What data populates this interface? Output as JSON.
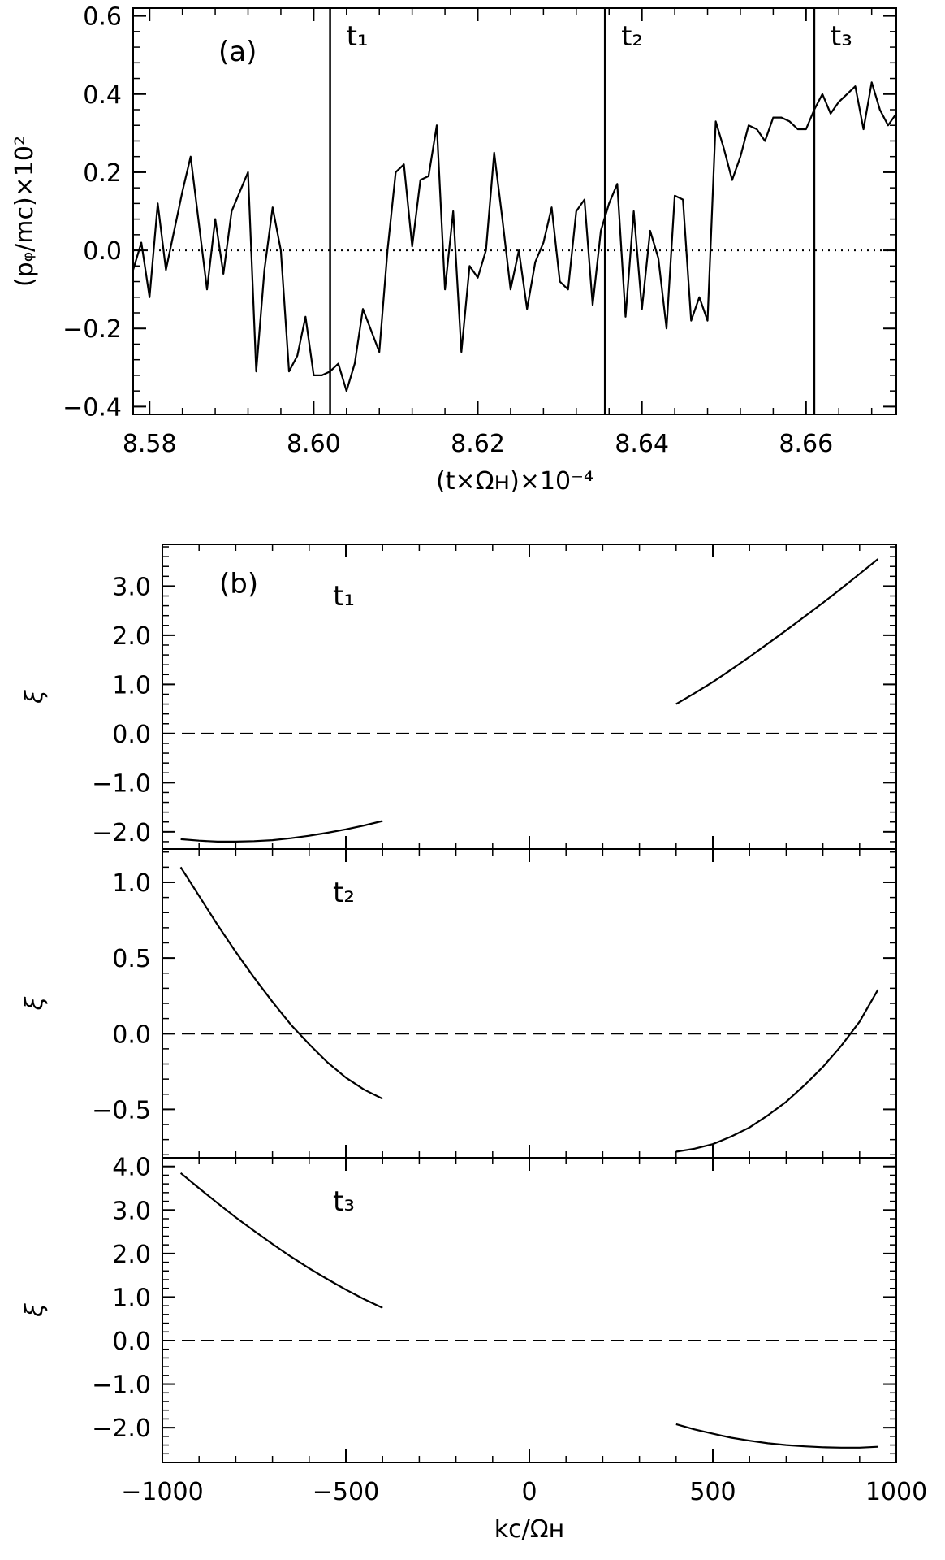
{
  "chart_data": [
    {
      "type": "line",
      "panel": "(a)",
      "xlabel": "(t×Ωʜ)×10⁻⁴",
      "ylabel": "(pᵩ/mc)×10²",
      "xlim": [
        8.578,
        8.671
      ],
      "ylim": [
        -0.42,
        0.62
      ],
      "xticks": [
        8.58,
        8.6,
        8.62,
        8.64,
        8.66
      ],
      "xtick_labels": [
        "8.58",
        "8.60",
        "8.62",
        "8.64",
        "8.66"
      ],
      "yticks": [
        -0.4,
        -0.2,
        0.0,
        0.2,
        0.4,
        0.6
      ],
      "ytick_labels": [
        "−0.4",
        "−0.2",
        "0.0",
        "0.2",
        "0.4",
        "0.6"
      ],
      "reference_line": {
        "y": 0.0,
        "style": "dotted"
      },
      "markers": [
        {
          "label": "t₁",
          "x": 8.602
        },
        {
          "label": "t₂",
          "x": 8.6355
        },
        {
          "label": "t₃",
          "x": 8.661
        }
      ],
      "series": [
        {
          "x": [
            8.578,
            8.579,
            8.58,
            8.581,
            8.582,
            8.583,
            8.584,
            8.585,
            8.587,
            8.588,
            8.589,
            8.59,
            8.592,
            8.593,
            8.594,
            8.595,
            8.596,
            8.597,
            8.598,
            8.599,
            8.6,
            8.601,
            8.602,
            8.603,
            8.604,
            8.605,
            8.606,
            8.608,
            8.609,
            8.61,
            8.611,
            8.612,
            8.613,
            8.614,
            8.615,
            8.616,
            8.617,
            8.618,
            8.619,
            8.62,
            8.621,
            8.622,
            8.623,
            8.624,
            8.625,
            8.626,
            8.627,
            8.628,
            8.629,
            8.63,
            8.631,
            8.632,
            8.633,
            8.634,
            8.635,
            8.636,
            8.637,
            8.638,
            8.639,
            8.64,
            8.641,
            8.642,
            8.643,
            8.644,
            8.645,
            8.646,
            8.647,
            8.648,
            8.649,
            8.65,
            8.651,
            8.652,
            8.653,
            8.654,
            8.655,
            8.656,
            8.657,
            8.658,
            8.659,
            8.66,
            8.661,
            8.662,
            8.663,
            8.664,
            8.665,
            8.666,
            8.667,
            8.668,
            8.669,
            8.67,
            8.671
          ],
          "values": [
            -0.05,
            0.02,
            -0.12,
            0.12,
            -0.05,
            0.05,
            0.15,
            0.24,
            -0.1,
            0.08,
            -0.06,
            0.1,
            0.2,
            -0.31,
            -0.05,
            0.11,
            0.0,
            -0.31,
            -0.27,
            -0.17,
            -0.32,
            -0.32,
            -0.31,
            -0.29,
            -0.36,
            -0.29,
            -0.15,
            -0.26,
            0.0,
            0.2,
            0.22,
            0.01,
            0.18,
            0.19,
            0.32,
            -0.1,
            0.1,
            -0.26,
            -0.04,
            -0.07,
            0.0,
            0.25,
            0.08,
            -0.1,
            0.0,
            -0.15,
            -0.03,
            0.02,
            0.11,
            -0.08,
            -0.1,
            0.1,
            0.13,
            -0.14,
            0.05,
            0.12,
            0.17,
            -0.17,
            0.1,
            -0.15,
            0.05,
            -0.02,
            -0.2,
            0.14,
            0.13,
            -0.18,
            -0.12,
            -0.18,
            0.33,
            0.26,
            0.18,
            0.24,
            0.32,
            0.31,
            0.28,
            0.34,
            0.34,
            0.33,
            0.31,
            0.31,
            0.36,
            0.4,
            0.35,
            0.38,
            0.4,
            0.42,
            0.31,
            0.43,
            0.36,
            0.32,
            0.35
          ]
        }
      ]
    },
    {
      "type": "line",
      "panel": "(b)",
      "label": "t₁",
      "ylabel": "ξ",
      "xlim": [
        -1000,
        1000
      ],
      "ylim": [
        -2.35,
        3.85
      ],
      "yticks": [
        -2.0,
        -1.0,
        0.0,
        1.0,
        2.0,
        3.0
      ],
      "ytick_labels": [
        "−2.0",
        "−1.0",
        "0.0",
        "1.0",
        "2.0",
        "3.0"
      ],
      "reference_line": {
        "y": 0.0,
        "style": "dashed"
      },
      "series": [
        {
          "x": [
            -950,
            -900,
            -850,
            -800,
            -750,
            -700,
            -650,
            -600,
            -550,
            -500,
            -450,
            -400
          ],
          "values": [
            -2.15,
            -2.18,
            -2.2,
            -2.2,
            -2.19,
            -2.17,
            -2.13,
            -2.08,
            -2.02,
            -1.95,
            -1.87,
            -1.78
          ]
        },
        {
          "x": [
            400,
            450,
            500,
            550,
            600,
            650,
            700,
            750,
            800,
            850,
            900,
            950
          ],
          "values": [
            0.6,
            0.82,
            1.05,
            1.3,
            1.56,
            1.83,
            2.1,
            2.38,
            2.66,
            2.95,
            3.25,
            3.55
          ]
        }
      ]
    },
    {
      "type": "line",
      "label": "t₂",
      "ylabel": "ξ",
      "xlim": [
        -1000,
        1000
      ],
      "ylim": [
        -0.82,
        1.22
      ],
      "yticks": [
        -0.5,
        0.0,
        0.5,
        1.0
      ],
      "ytick_labels": [
        "−0.5",
        "0.0",
        "0.5",
        "1.0"
      ],
      "reference_line": {
        "y": 0.0,
        "style": "dashed"
      },
      "series": [
        {
          "x": [
            -950,
            -900,
            -850,
            -800,
            -750,
            -700,
            -650,
            -600,
            -550,
            -500,
            -450,
            -400
          ],
          "values": [
            1.1,
            0.91,
            0.72,
            0.54,
            0.37,
            0.21,
            0.06,
            -0.07,
            -0.19,
            -0.29,
            -0.37,
            -0.43
          ]
        },
        {
          "x": [
            400,
            450,
            500,
            550,
            600,
            650,
            700,
            750,
            800,
            850,
            900,
            950
          ],
          "values": [
            -0.78,
            -0.76,
            -0.73,
            -0.68,
            -0.62,
            -0.54,
            -0.45,
            -0.34,
            -0.22,
            -0.08,
            0.08,
            0.29
          ]
        }
      ]
    },
    {
      "type": "line",
      "label": "t₃",
      "ylabel": "ξ",
      "xlabel": "kc/Ωʜ",
      "xlim": [
        -1000,
        1000
      ],
      "ylim": [
        -2.8,
        4.2
      ],
      "xticks": [
        -1000,
        -500,
        0,
        500,
        1000
      ],
      "xtick_labels": [
        "−1000",
        "−500",
        "0",
        "500",
        "1000"
      ],
      "yticks": [
        -2.0,
        -1.0,
        0.0,
        1.0,
        2.0,
        3.0,
        4.0
      ],
      "ytick_labels": [
        "−2.0",
        "−1.0",
        "0.0",
        "1.0",
        "2.0",
        "3.0",
        "4.0"
      ],
      "reference_line": {
        "y": 0.0,
        "style": "dashed"
      },
      "series": [
        {
          "x": [
            -950,
            -900,
            -850,
            -800,
            -750,
            -700,
            -650,
            -600,
            -550,
            -500,
            -450,
            -400
          ],
          "values": [
            3.85,
            3.5,
            3.16,
            2.83,
            2.52,
            2.22,
            1.93,
            1.66,
            1.41,
            1.17,
            0.95,
            0.75
          ]
        },
        {
          "x": [
            400,
            450,
            500,
            550,
            600,
            650,
            700,
            750,
            800,
            850,
            900,
            950
          ],
          "values": [
            -1.92,
            -2.04,
            -2.14,
            -2.23,
            -2.3,
            -2.36,
            -2.4,
            -2.43,
            -2.45,
            -2.46,
            -2.46,
            -2.44
          ]
        }
      ]
    }
  ]
}
